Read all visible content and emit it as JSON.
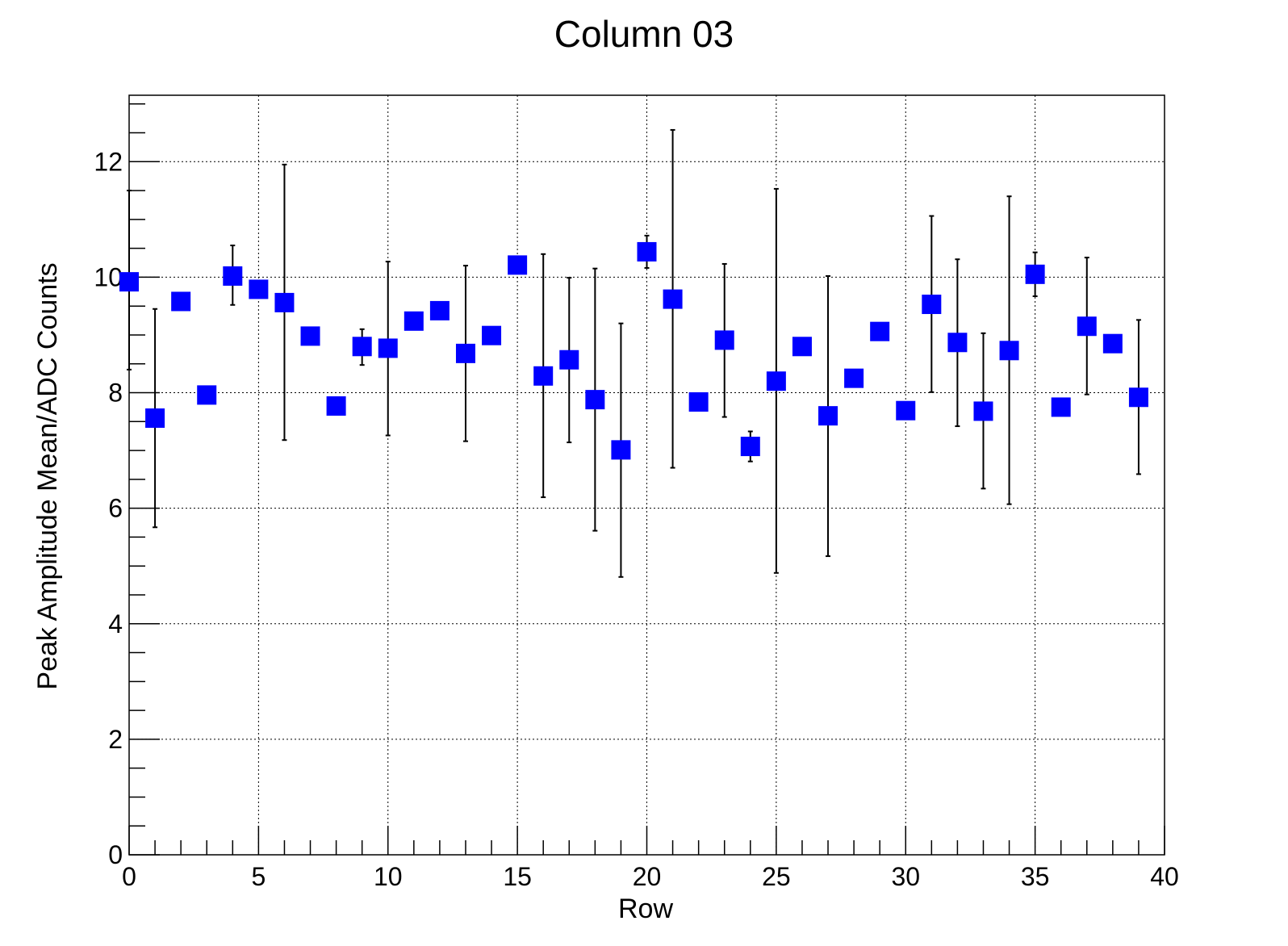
{
  "chart_data": {
    "type": "scatter",
    "title": "Column 03",
    "xlabel": "Row",
    "ylabel": "Peak Amplitude Mean/ADC Counts",
    "xlim": [
      0,
      40
    ],
    "ylim": [
      0,
      13.15
    ],
    "x_ticks": [
      0,
      5,
      10,
      15,
      20,
      25,
      30,
      35,
      40
    ],
    "y_ticks": [
      0,
      2,
      4,
      6,
      8,
      10,
      12
    ],
    "x_minor_step": 1,
    "y_minor_step": 0.5,
    "grid": true,
    "marker_color": "#0000ff",
    "errorbar_color": "#000000",
    "points": [
      {
        "x": 0,
        "y": 9.92,
        "lo": 8.4,
        "hi": 11.5
      },
      {
        "x": 1,
        "y": 7.56,
        "lo": 5.67,
        "hi": 9.45
      },
      {
        "x": 2,
        "y": 9.58,
        "lo": null,
        "hi": null
      },
      {
        "x": 3,
        "y": 7.96,
        "lo": null,
        "hi": null
      },
      {
        "x": 4,
        "y": 10.02,
        "lo": 9.52,
        "hi": 10.55
      },
      {
        "x": 5,
        "y": 9.79,
        "lo": null,
        "hi": null
      },
      {
        "x": 6,
        "y": 9.56,
        "lo": 7.18,
        "hi": 11.95
      },
      {
        "x": 7,
        "y": 8.98,
        "lo": null,
        "hi": null
      },
      {
        "x": 8,
        "y": 7.77,
        "lo": null,
        "hi": null
      },
      {
        "x": 9,
        "y": 8.8,
        "lo": 8.48,
        "hi": 9.1
      },
      {
        "x": 10,
        "y": 8.77,
        "lo": 7.26,
        "hi": 10.27
      },
      {
        "x": 11,
        "y": 9.24,
        "lo": null,
        "hi": null
      },
      {
        "x": 12,
        "y": 9.42,
        "lo": null,
        "hi": null
      },
      {
        "x": 13,
        "y": 8.68,
        "lo": 7.16,
        "hi": 10.2
      },
      {
        "x": 14,
        "y": 8.99,
        "lo": null,
        "hi": null
      },
      {
        "x": 15,
        "y": 10.21,
        "lo": null,
        "hi": null
      },
      {
        "x": 16,
        "y": 8.29,
        "lo": 6.19,
        "hi": 10.4
      },
      {
        "x": 17,
        "y": 8.57,
        "lo": 7.14,
        "hi": 9.99
      },
      {
        "x": 18,
        "y": 7.88,
        "lo": 5.61,
        "hi": 10.15
      },
      {
        "x": 19,
        "y": 7.01,
        "lo": 4.81,
        "hi": 9.2
      },
      {
        "x": 20,
        "y": 10.44,
        "lo": 10.16,
        "hi": 10.72
      },
      {
        "x": 21,
        "y": 9.62,
        "lo": 6.7,
        "hi": 12.55
      },
      {
        "x": 22,
        "y": 7.84,
        "lo": null,
        "hi": null
      },
      {
        "x": 23,
        "y": 8.91,
        "lo": 7.58,
        "hi": 10.23
      },
      {
        "x": 24,
        "y": 7.07,
        "lo": 6.81,
        "hi": 7.33
      },
      {
        "x": 25,
        "y": 8.2,
        "lo": 4.88,
        "hi": 11.53
      },
      {
        "x": 26,
        "y": 8.8,
        "lo": null,
        "hi": null
      },
      {
        "x": 27,
        "y": 7.6,
        "lo": 5.17,
        "hi": 10.02
      },
      {
        "x": 28,
        "y": 8.25,
        "lo": null,
        "hi": null
      },
      {
        "x": 29,
        "y": 9.06,
        "lo": null,
        "hi": null
      },
      {
        "x": 30,
        "y": 7.69,
        "lo": null,
        "hi": null
      },
      {
        "x": 31,
        "y": 9.53,
        "lo": 8.01,
        "hi": 11.06
      },
      {
        "x": 32,
        "y": 8.87,
        "lo": 7.42,
        "hi": 10.31
      },
      {
        "x": 33,
        "y": 7.68,
        "lo": 6.34,
        "hi": 9.03
      },
      {
        "x": 34,
        "y": 8.73,
        "lo": 6.07,
        "hi": 11.4
      },
      {
        "x": 35,
        "y": 10.05,
        "lo": 9.67,
        "hi": 10.43
      },
      {
        "x": 36,
        "y": 7.75,
        "lo": null,
        "hi": null
      },
      {
        "x": 37,
        "y": 9.15,
        "lo": 7.97,
        "hi": 10.34
      },
      {
        "x": 38,
        "y": 8.85,
        "lo": null,
        "hi": null
      },
      {
        "x": 39,
        "y": 7.92,
        "lo": 6.59,
        "hi": 9.26
      }
    ]
  }
}
